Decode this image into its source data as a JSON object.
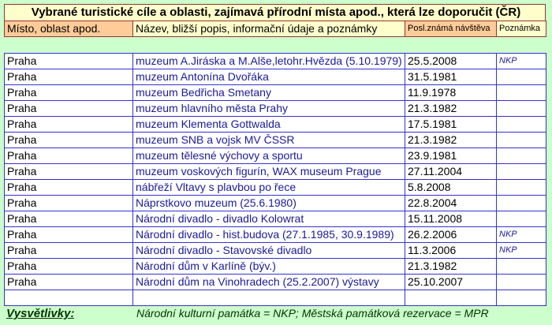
{
  "header": {
    "title": "Vybrané turistické cíle a oblasti, zajímavá přírodní místa apod., která lze doporučit (ČR)",
    "columns": [
      "Místo, oblast apod.",
      "Název, bližší popis, informační údaje a poznámky",
      "Posl.známá návštěva",
      "Poznámka"
    ]
  },
  "table": {
    "rows": [
      {
        "place": "Praha",
        "name": "muzeum A.Jiráska a M.Alše,letohr.Hvězda (5.10.1979)",
        "date": "25.5.2008",
        "note": "NKP"
      },
      {
        "place": "Praha",
        "name": "muzeum Antonína Dvořáka",
        "date": "31.5.1981"
      },
      {
        "place": "Praha",
        "name": "muzeum Bedřicha Smetany",
        "date": "11.9.1978"
      },
      {
        "place": "Praha",
        "name": "muzeum hlavního města Prahy",
        "date": "21.3.1982"
      },
      {
        "place": "Praha",
        "name": "muzeum Klementa Gottwalda",
        "date": "17.5.1981"
      },
      {
        "place": "Praha",
        "name": "muzeum SNB a vojsk MV ČSSR",
        "date": "21.3.1982"
      },
      {
        "place": "Praha",
        "name": "muzeum tělesné výchovy a sportu",
        "date": "23.9.1981"
      },
      {
        "place": "Praha",
        "name": "muzeum voskových figurín, WAX museum Prague",
        "date": "27.11.2004"
      },
      {
        "place": "Praha",
        "name": "nábřeží Vltavy s plavbou po řece",
        "date": "5.8.2008"
      },
      {
        "place": "Praha",
        "name": "Náprstkovo muzeum (25.6.1980)",
        "date": "22.8.2004"
      },
      {
        "place": "Praha",
        "name": "Národní divadlo - divadlo Kolowrat",
        "date": "15.11.2008"
      },
      {
        "place": "Praha",
        "name": "Národní divadlo - hist.budova (27.1.1985, 30.9.1989)",
        "date": "26.2.2006",
        "note": "NKP"
      },
      {
        "place": "Praha",
        "name": "Národní divadlo - Stavovské divadlo",
        "date": "11.3.2006",
        "note": "NKP"
      },
      {
        "place": "Praha",
        "name": "Národní dům v Karlíně (býv.)",
        "date": "21.3.1982"
      },
      {
        "place": "Praha",
        "name": "Národní dům na Vinohradech (25.2.2007) výstavy",
        "date": "25.10.2007"
      }
    ]
  },
  "legend": {
    "label": "Vysvětlivky:",
    "text": "Národní kulturní památka = NKP;  Městská památková rezervace = MPR"
  }
}
